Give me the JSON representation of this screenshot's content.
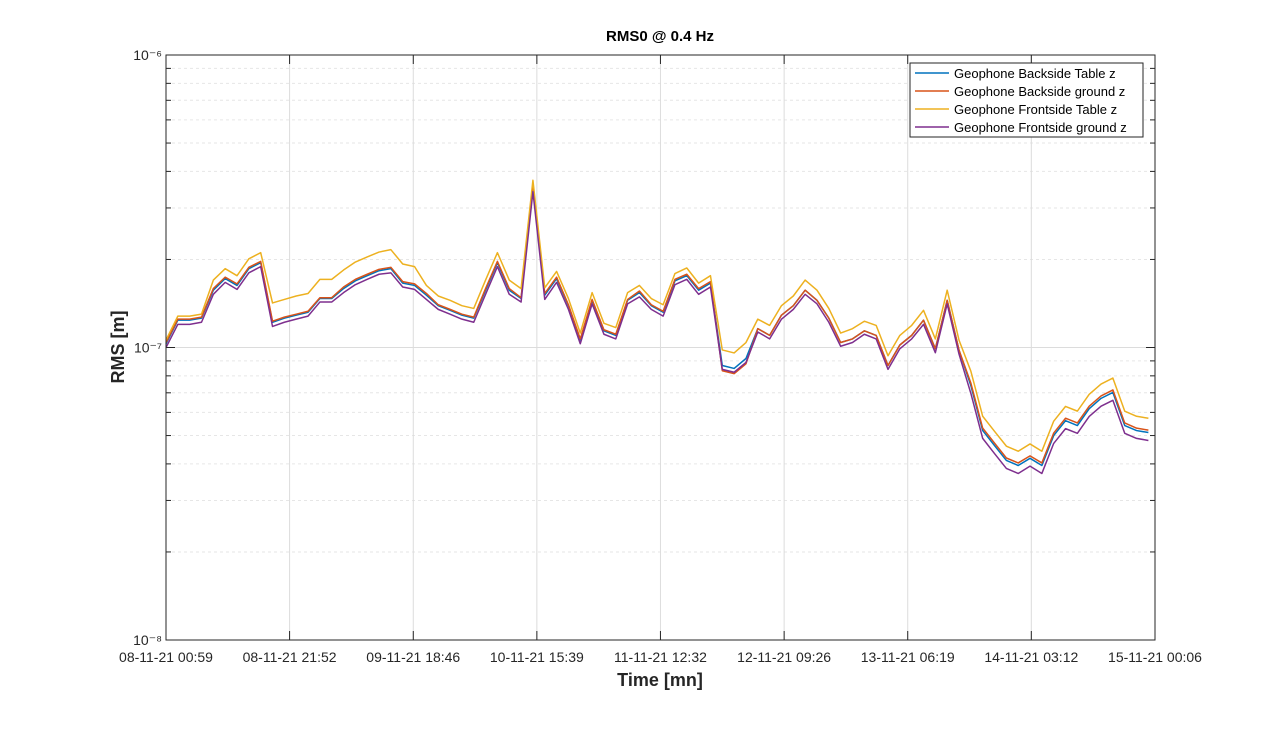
{
  "chart_data": {
    "type": "line",
    "title": "RMS0 @ 0.4 Hz",
    "x_label": "Time [mn]",
    "y_label": "RMS [m]",
    "log_y": true,
    "grid": true,
    "minor_grid": true,
    "legend": "northeast",
    "xlim": [
      "08-11-21 00:59",
      "15-11-21 00:06"
    ],
    "xticks": [
      "08-11-21 00:59",
      "08-11-21 21:52",
      "09-11-21 18:46",
      "10-11-21 15:39",
      "11-11-21 12:32",
      "12-11-21 09:26",
      "13-11-21 06:19",
      "14-11-21 03:12",
      "15-11-21 00:06"
    ],
    "ylim": [
      1e-08,
      1e-06
    ],
    "yticks": [
      {
        "value": 1e-08,
        "label": "10⁻⁸"
      },
      {
        "value": 1e-07,
        "label": "10⁻⁷"
      },
      {
        "value": 1e-06,
        "label": "10⁻⁶"
      }
    ],
    "x": [
      "08-11-21 00:59",
      "08-11-21 02:59",
      "08-11-21 04:59",
      "08-11-21 06:59",
      "08-11-21 08:59",
      "08-11-21 10:59",
      "08-11-21 12:59",
      "08-11-21 14:59",
      "08-11-21 16:59",
      "08-11-21 18:59",
      "08-11-21 20:59",
      "08-11-21 22:59",
      "09-11-21 00:59",
      "09-11-21 02:59",
      "09-11-21 04:59",
      "09-11-21 06:59",
      "09-11-21 08:59",
      "09-11-21 10:59",
      "09-11-21 12:59",
      "09-11-21 14:59",
      "09-11-21 16:59",
      "09-11-21 18:59",
      "09-11-21 20:59",
      "09-11-21 22:59",
      "10-11-21 00:59",
      "10-11-21 02:59",
      "10-11-21 04:59",
      "10-11-21 06:59",
      "10-11-21 08:59",
      "10-11-21 10:59",
      "10-11-21 12:59",
      "10-11-21 14:59",
      "10-11-21 16:59",
      "10-11-21 18:59",
      "10-11-21 20:59",
      "10-11-21 22:59",
      "11-11-21 00:59",
      "11-11-21 02:59",
      "11-11-21 04:59",
      "11-11-21 06:59",
      "11-11-21 08:59",
      "11-11-21 10:59",
      "11-11-21 12:59",
      "11-11-21 14:59",
      "11-11-21 16:59",
      "11-11-21 18:59",
      "11-11-21 20:59",
      "11-11-21 22:59",
      "12-11-21 00:59",
      "12-11-21 02:59",
      "12-11-21 04:59",
      "12-11-21 06:59",
      "12-11-21 08:59",
      "12-11-21 10:59",
      "12-11-21 12:59",
      "12-11-21 14:59",
      "12-11-21 16:59",
      "12-11-21 18:59",
      "12-11-21 20:59",
      "12-11-21 22:59",
      "13-11-21 00:59",
      "13-11-21 02:59",
      "13-11-21 04:59",
      "13-11-21 06:59",
      "13-11-21 08:59",
      "13-11-21 10:59",
      "13-11-21 12:59",
      "13-11-21 14:59",
      "13-11-21 16:59",
      "13-11-21 18:59",
      "13-11-21 20:59",
      "13-11-21 22:59",
      "14-11-21 00:59",
      "14-11-21 02:59",
      "14-11-21 04:59",
      "14-11-21 06:59",
      "14-11-21 08:59",
      "14-11-21 10:59",
      "14-11-21 12:59",
      "14-11-21 14:59",
      "14-11-21 16:59",
      "14-11-21 18:59",
      "14-11-21 20:59",
      "14-11-21 22:59"
    ],
    "series": [
      {
        "name": "Geophone Backside Table z",
        "color": "#0072bd",
        "values": [
          1.03e-07,
          1.24e-07,
          1.24e-07,
          1.26e-07,
          1.57e-07,
          1.72e-07,
          1.63e-07,
          1.86e-07,
          1.95e-07,
          1.22e-07,
          1.26e-07,
          1.29e-07,
          1.32e-07,
          1.47e-07,
          1.47e-07,
          1.59e-07,
          1.69e-07,
          1.76e-07,
          1.83e-07,
          1.86e-07,
          1.66e-07,
          1.63e-07,
          1.51e-07,
          1.39e-07,
          1.34e-07,
          1.29e-07,
          1.26e-07,
          1.57e-07,
          1.95e-07,
          1.57e-07,
          1.47e-07,
          3.52e-07,
          1.51e-07,
          1.72e-07,
          1.39e-07,
          1.06e-07,
          1.45e-07,
          1.14e-07,
          1.1e-07,
          1.45e-07,
          1.54e-07,
          1.39e-07,
          1.32e-07,
          1.69e-07,
          1.76e-07,
          1.57e-07,
          1.66e-07,
          8.68e-08,
          8.48e-08,
          9.17e-08,
          1.16e-07,
          1.1e-07,
          1.29e-07,
          1.39e-07,
          1.57e-07,
          1.45e-07,
          1.26e-07,
          1.04e-07,
          1.07e-07,
          1.14e-07,
          1.1e-07,
          8.68e-08,
          1.02e-07,
          1.1e-07,
          1.24e-07,
          9.9e-08,
          1.45e-07,
          9.8e-08,
          7.41e-08,
          5.2e-08,
          4.62e-08,
          4.11e-08,
          3.95e-08,
          4.18e-08,
          3.95e-08,
          5e-08,
          5.62e-08,
          5.41e-08,
          6.18e-08,
          6.7e-08,
          7.02e-08,
          5.41e-08,
          5.2e-08,
          5.12e-08
        ]
      },
      {
        "name": "Geophone Backside ground z",
        "color": "#d95319",
        "values": [
          1.04e-07,
          1.25e-07,
          1.25e-07,
          1.27e-07,
          1.59e-07,
          1.74e-07,
          1.65e-07,
          1.88e-07,
          1.97e-07,
          1.23e-07,
          1.27e-07,
          1.3e-07,
          1.33e-07,
          1.48e-07,
          1.48e-07,
          1.61e-07,
          1.71e-07,
          1.78e-07,
          1.85e-07,
          1.88e-07,
          1.68e-07,
          1.65e-07,
          1.53e-07,
          1.4e-07,
          1.35e-07,
          1.3e-07,
          1.27e-07,
          1.59e-07,
          1.97e-07,
          1.59e-07,
          1.48e-07,
          3.56e-07,
          1.53e-07,
          1.74e-07,
          1.4e-07,
          1.07e-07,
          1.46e-07,
          1.15e-07,
          1.11e-07,
          1.46e-07,
          1.56e-07,
          1.4e-07,
          1.33e-07,
          1.71e-07,
          1.78e-07,
          1.59e-07,
          1.68e-07,
          8.33e-08,
          8.14e-08,
          8.8e-08,
          1.16e-07,
          1.1e-07,
          1.29e-07,
          1.39e-07,
          1.57e-07,
          1.45e-07,
          1.26e-07,
          1.04e-07,
          1.07e-07,
          1.14e-07,
          1.1e-07,
          8.68e-08,
          1.02e-07,
          1.1e-07,
          1.24e-07,
          9.9e-08,
          1.45e-07,
          9.8e-08,
          7.56e-08,
          5.3e-08,
          4.71e-08,
          4.19e-08,
          4.03e-08,
          4.26e-08,
          4.03e-08,
          5.1e-08,
          5.73e-08,
          5.52e-08,
          6.3e-08,
          6.83e-08,
          7.16e-08,
          5.52e-08,
          5.3e-08,
          5.22e-08
        ]
      },
      {
        "name": "Geophone Frontside Table z",
        "color": "#edb120",
        "values": [
          1.06e-07,
          1.28e-07,
          1.28e-07,
          1.3e-07,
          1.7e-07,
          1.86e-07,
          1.76e-07,
          2.01e-07,
          2.11e-07,
          1.42e-07,
          1.46e-07,
          1.5e-07,
          1.53e-07,
          1.71e-07,
          1.71e-07,
          1.84e-07,
          1.96e-07,
          2.04e-07,
          2.12e-07,
          2.16e-07,
          1.93e-07,
          1.89e-07,
          1.63e-07,
          1.5e-07,
          1.45e-07,
          1.39e-07,
          1.36e-07,
          1.7e-07,
          2.11e-07,
          1.7e-07,
          1.59e-07,
          3.73e-07,
          1.6e-07,
          1.82e-07,
          1.47e-07,
          1.12e-07,
          1.54e-07,
          1.21e-07,
          1.17e-07,
          1.54e-07,
          1.63e-07,
          1.47e-07,
          1.4e-07,
          1.79e-07,
          1.87e-07,
          1.66e-07,
          1.76e-07,
          9.81e-08,
          9.58e-08,
          1.04e-07,
          1.25e-07,
          1.19e-07,
          1.39e-07,
          1.5e-07,
          1.7e-07,
          1.57e-07,
          1.36e-07,
          1.12e-07,
          1.16e-07,
          1.23e-07,
          1.19e-07,
          9.37e-08,
          1.1e-07,
          1.19e-07,
          1.34e-07,
          1.07e-07,
          1.57e-07,
          1.06e-07,
          8.3e-08,
          5.82e-08,
          5.17e-08,
          4.6e-08,
          4.42e-08,
          4.68e-08,
          4.42e-08,
          5.6e-08,
          6.29e-08,
          6.06e-08,
          6.92e-08,
          7.5e-08,
          7.86e-08,
          6.06e-08,
          5.82e-08,
          5.73e-08
        ]
      },
      {
        "name": "Geophone Frontside ground z",
        "color": "#7e2f8e",
        "values": [
          1e-07,
          1.2e-07,
          1.2e-07,
          1.22e-07,
          1.52e-07,
          1.67e-07,
          1.58e-07,
          1.8e-07,
          1.89e-07,
          1.18e-07,
          1.22e-07,
          1.25e-07,
          1.28e-07,
          1.43e-07,
          1.43e-07,
          1.54e-07,
          1.64e-07,
          1.71e-07,
          1.78e-07,
          1.8e-07,
          1.61e-07,
          1.58e-07,
          1.46e-07,
          1.35e-07,
          1.3e-07,
          1.25e-07,
          1.22e-07,
          1.52e-07,
          1.89e-07,
          1.52e-07,
          1.43e-07,
          3.41e-07,
          1.46e-07,
          1.67e-07,
          1.35e-07,
          1.03e-07,
          1.41e-07,
          1.11e-07,
          1.07e-07,
          1.41e-07,
          1.49e-07,
          1.35e-07,
          1.28e-07,
          1.64e-07,
          1.71e-07,
          1.52e-07,
          1.61e-07,
          8.42e-08,
          8.23e-08,
          8.89e-08,
          1.13e-07,
          1.07e-07,
          1.25e-07,
          1.35e-07,
          1.52e-07,
          1.41e-07,
          1.22e-07,
          1.01e-07,
          1.04e-07,
          1.11e-07,
          1.07e-07,
          8.42e-08,
          9.9e-08,
          1.07e-07,
          1.2e-07,
          9.6e-08,
          1.41e-07,
          9.5e-08,
          6.97e-08,
          4.89e-08,
          4.34e-08,
          3.86e-08,
          3.71e-08,
          3.93e-08,
          3.71e-08,
          4.7e-08,
          5.28e-08,
          5.09e-08,
          5.81e-08,
          6.3e-08,
          6.6e-08,
          5.09e-08,
          4.89e-08,
          4.81e-08
        ]
      }
    ]
  }
}
